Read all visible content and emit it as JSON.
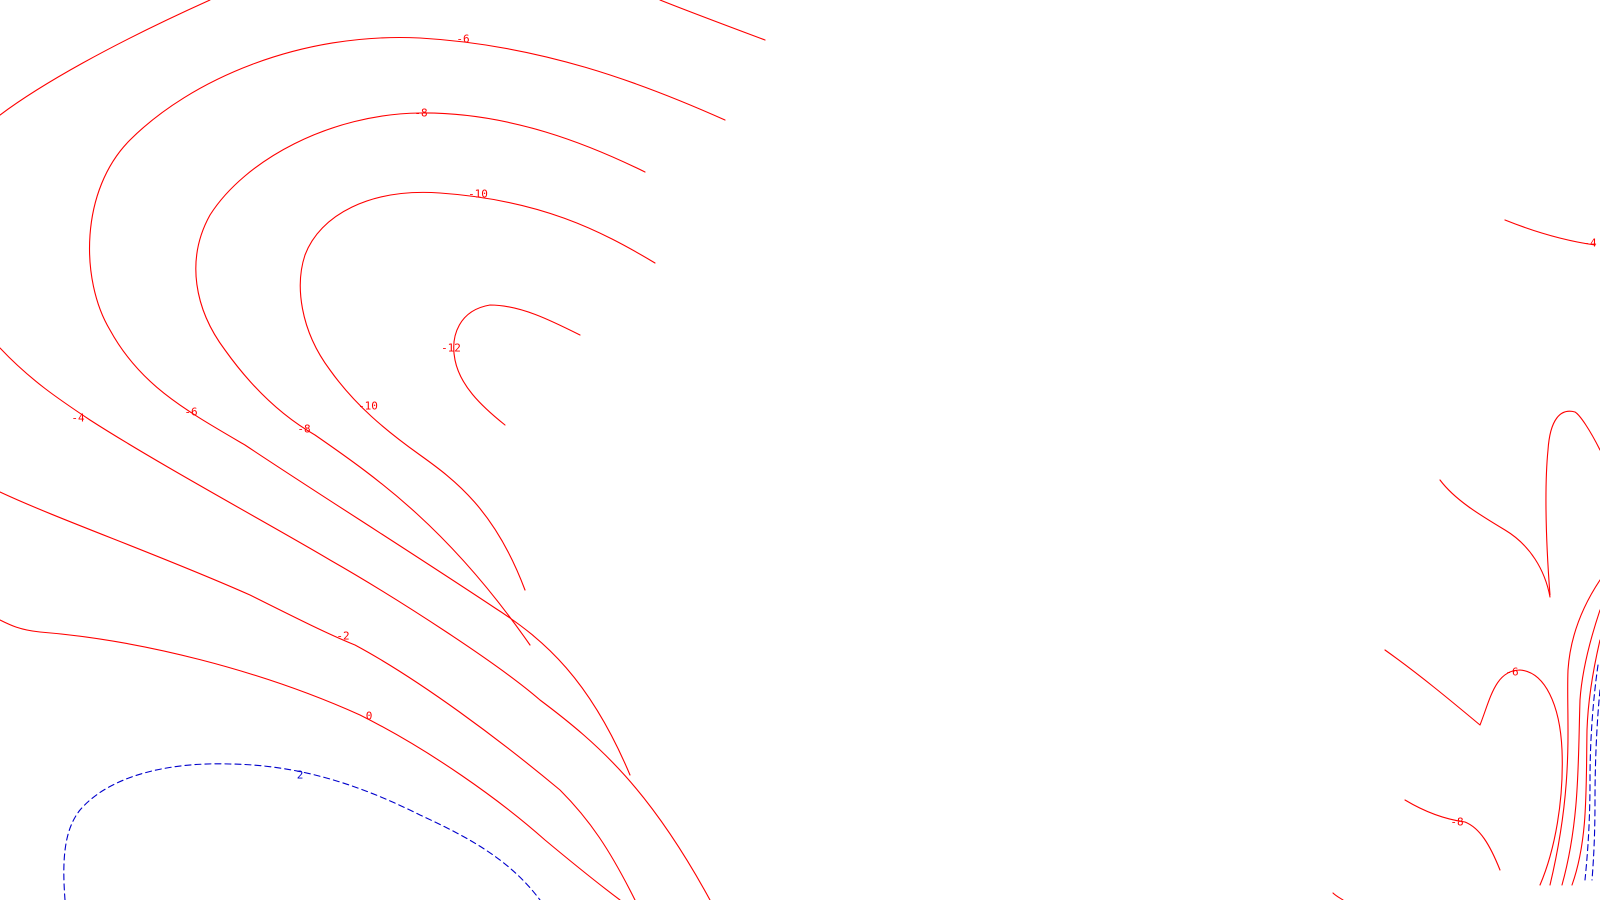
{
  "map": {
    "colors": {
      "background": "#ffffff",
      "negative_contours": "#ff0000",
      "positive_contours": "#0000cc"
    },
    "contour_labels": [
      "-6",
      "-8",
      "-10",
      "-12",
      "-4",
      "-6",
      "-8",
      "-10",
      "-2",
      "0",
      "2",
      "-4",
      "-6",
      "-8"
    ]
  }
}
